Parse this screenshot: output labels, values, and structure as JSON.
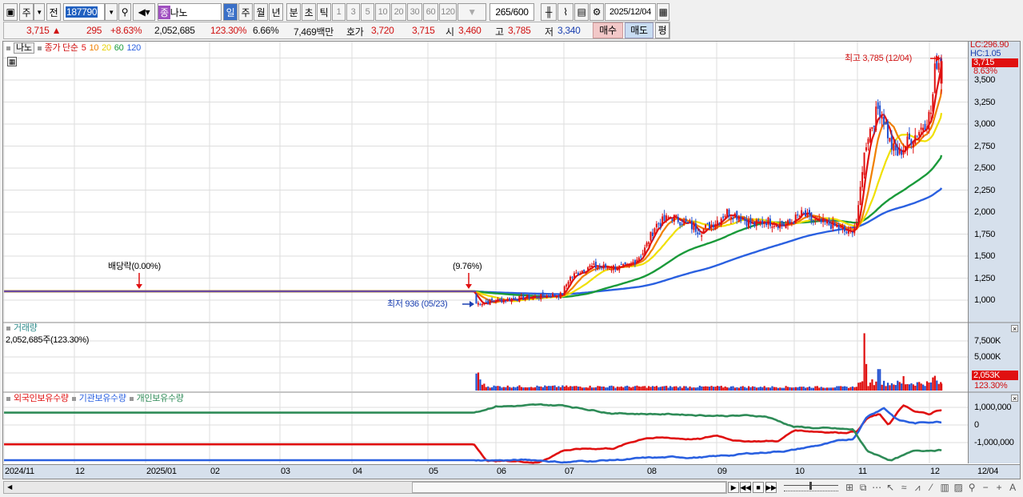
{
  "toolbar": {
    "period": "주",
    "prev": "전",
    "code": "187790",
    "stock_badge": "종",
    "stock_name": "나노",
    "tabs": [
      "일",
      "주",
      "월",
      "년",
      "분",
      "초",
      "틱"
    ],
    "active_tab": "일",
    "intervals": [
      "1",
      "3",
      "5",
      "10",
      "20",
      "30",
      "60",
      "120"
    ],
    "count": "265",
    "count_max": "/600",
    "date": "2025/12/04"
  },
  "info": {
    "price": "3,715 ▲",
    "change": "295",
    "pct": "+8.63%",
    "volume": "2,052,685",
    "vol_ratio": "123.30%",
    "turnover": "6.66%",
    "amount": "7,469백만",
    "quote_label": "호가",
    "ask": "3,720",
    "bid": "3,715",
    "open_label": "시",
    "open": "3,460",
    "high_label": "고",
    "high": "3,785",
    "low_label": "저",
    "low": "3,340",
    "buy": "매수",
    "sell": "매도",
    "eval": "평"
  },
  "legend": {
    "name": "나노",
    "ma_label": "종가 단순",
    "ma": [
      "5",
      "10",
      "20",
      "60",
      "120"
    ],
    "ma_colors": [
      "#e01010",
      "#f08000",
      "#f0e000",
      "#1a9a3a",
      "#2a60e0"
    ]
  },
  "price_axis": {
    "lc": "LC:296.90",
    "hc": "HC:1.05",
    "current": "3,715",
    "pct": "8.63%",
    "ticks": [
      "3,500",
      "3,250",
      "3,000",
      "2,750",
      "2,500",
      "2,250",
      "2,000",
      "1,750",
      "1,500",
      "1,250",
      "1,000"
    ]
  },
  "annotations": {
    "high": "최고 3,785 (12/04)",
    "low": "최저 936 (05/23)",
    "dividend": "배당락(0.00%)",
    "event": "(9.76%)"
  },
  "volume_panel": {
    "title": "거래량",
    "value": "2,052,685주(123.30%)",
    "ticks": [
      "7,500K",
      "5,000K"
    ],
    "current": "2,053K",
    "pct": "123.30%"
  },
  "holdings_panel": {
    "series": [
      "외국인보유수량",
      "기관보유수량",
      "개인보유수량"
    ],
    "colors": [
      "#e01010",
      "#2a60e0",
      "#2e8b57"
    ],
    "ticks": [
      "1,000,000",
      "0",
      "-1,000,000"
    ]
  },
  "date_axis": {
    "labels": [
      "2024/11",
      "12",
      "2025/01",
      "02",
      "03",
      "04",
      "05",
      "06",
      "07",
      "08",
      "09",
      "10",
      "11",
      "12"
    ],
    "current": "12/04"
  },
  "chart_data": {
    "type": "candlestick",
    "close": [
      [
        "2024-11-01",
        1100
      ],
      [
        "2025-05-22",
        1100
      ],
      [
        "2025-05-23",
        960
      ],
      [
        "2025-05-30",
        990
      ],
      [
        "2025-06-15",
        1030
      ],
      [
        "2025-06-30",
        1060
      ],
      [
        "2025-07-03",
        1250
      ],
      [
        "2025-07-10",
        1380
      ],
      [
        "2025-07-25",
        1370
      ],
      [
        "2025-07-31",
        1550
      ],
      [
        "2025-08-05",
        1850
      ],
      [
        "2025-08-12",
        1950
      ],
      [
        "2025-08-20",
        1850
      ],
      [
        "2025-08-25",
        1780
      ],
      [
        "2025-09-01",
        1900
      ],
      [
        "2025-09-05",
        2000
      ],
      [
        "2025-09-10",
        1950
      ],
      [
        "2025-09-15",
        1850
      ],
      [
        "2025-09-20",
        1900
      ],
      [
        "2025-09-28",
        1850
      ],
      [
        "2025-10-05",
        1980
      ],
      [
        "2025-10-10",
        1900
      ],
      [
        "2025-10-20",
        1850
      ],
      [
        "2025-10-28",
        1750
      ],
      [
        "2025-11-01",
        1900
      ],
      [
        "2025-11-03",
        2500
      ],
      [
        "2025-11-05",
        2850
      ],
      [
        "2025-11-10",
        3200
      ],
      [
        "2025-11-12",
        3050
      ],
      [
        "2025-11-15",
        2750
      ],
      [
        "2025-11-18",
        2650
      ],
      [
        "2025-11-22",
        2800
      ],
      [
        "2025-11-26",
        2900
      ],
      [
        "2025-11-30",
        3050
      ],
      [
        "2025-12-02",
        3150
      ],
      [
        "2025-12-03",
        3420
      ],
      [
        "2025-12-04",
        3715
      ]
    ],
    "volume_k": [
      [
        "2025-05-23",
        2400
      ],
      [
        "2025-11-03",
        1200
      ],
      [
        "2025-11-04",
        8700
      ],
      [
        "2025-11-05",
        3900
      ],
      [
        "2025-11-06",
        1000
      ],
      [
        "2025-11-07",
        1500
      ],
      [
        "2025-11-10",
        3100
      ],
      [
        "2025-11-20",
        2000
      ],
      [
        "2025-12-01",
        1000
      ],
      [
        "2025-12-03",
        1800
      ],
      [
        "2025-12-04",
        2053
      ]
    ],
    "foreign": [
      [
        "2024-11-01",
        -1100000
      ],
      [
        "2025-05-22",
        -1100000
      ],
      [
        "2025-05-28",
        -2000000
      ],
      [
        "2025-06-20",
        -2100000
      ],
      [
        "2025-07-01",
        -1400000
      ],
      [
        "2025-07-20",
        -1300000
      ],
      [
        "2025-08-01",
        -700000
      ],
      [
        "2025-08-25",
        -800000
      ],
      [
        "2025-09-01",
        -600000
      ],
      [
        "2025-09-10",
        -900000
      ],
      [
        "2025-09-25",
        -900000
      ],
      [
        "2025-10-01",
        -300000
      ],
      [
        "2025-10-25",
        -400000
      ],
      [
        "2025-11-01",
        -300000
      ],
      [
        "2025-11-05",
        400000
      ],
      [
        "2025-11-10",
        600000
      ],
      [
        "2025-11-14",
        0
      ],
      [
        "2025-11-20",
        1100000
      ],
      [
        "2025-11-25",
        700000
      ],
      [
        "2025-12-01",
        600000
      ],
      [
        "2025-12-04",
        800000
      ]
    ],
    "institution": [
      [
        "2024-11-01",
        -2000000
      ],
      [
        "2025-06-20",
        -2000000
      ],
      [
        "2025-07-01",
        -2100000
      ],
      [
        "2025-08-01",
        -1900000
      ],
      [
        "2025-09-01",
        -1800000
      ],
      [
        "2025-10-01",
        -1400000
      ],
      [
        "2025-10-30",
        -800000
      ],
      [
        "2025-11-05",
        500000
      ],
      [
        "2025-11-12",
        1000000
      ],
      [
        "2025-11-18",
        300000
      ],
      [
        "2025-11-25",
        100000
      ],
      [
        "2025-12-04",
        200000
      ]
    ],
    "individual": [
      [
        "2024-11-01",
        700000
      ],
      [
        "2025-05-22",
        700000
      ],
      [
        "2025-06-01",
        1100000
      ],
      [
        "2025-07-01",
        1100000
      ],
      [
        "2025-07-20",
        700000
      ],
      [
        "2025-08-20",
        600000
      ],
      [
        "2025-09-20",
        500000
      ],
      [
        "2025-10-01",
        -100000
      ],
      [
        "2025-10-30",
        -300000
      ],
      [
        "2025-11-05",
        -1500000
      ],
      [
        "2025-11-15",
        -2000000
      ],
      [
        "2025-11-25",
        -1500000
      ],
      [
        "2025-12-04",
        -1400000
      ]
    ]
  }
}
